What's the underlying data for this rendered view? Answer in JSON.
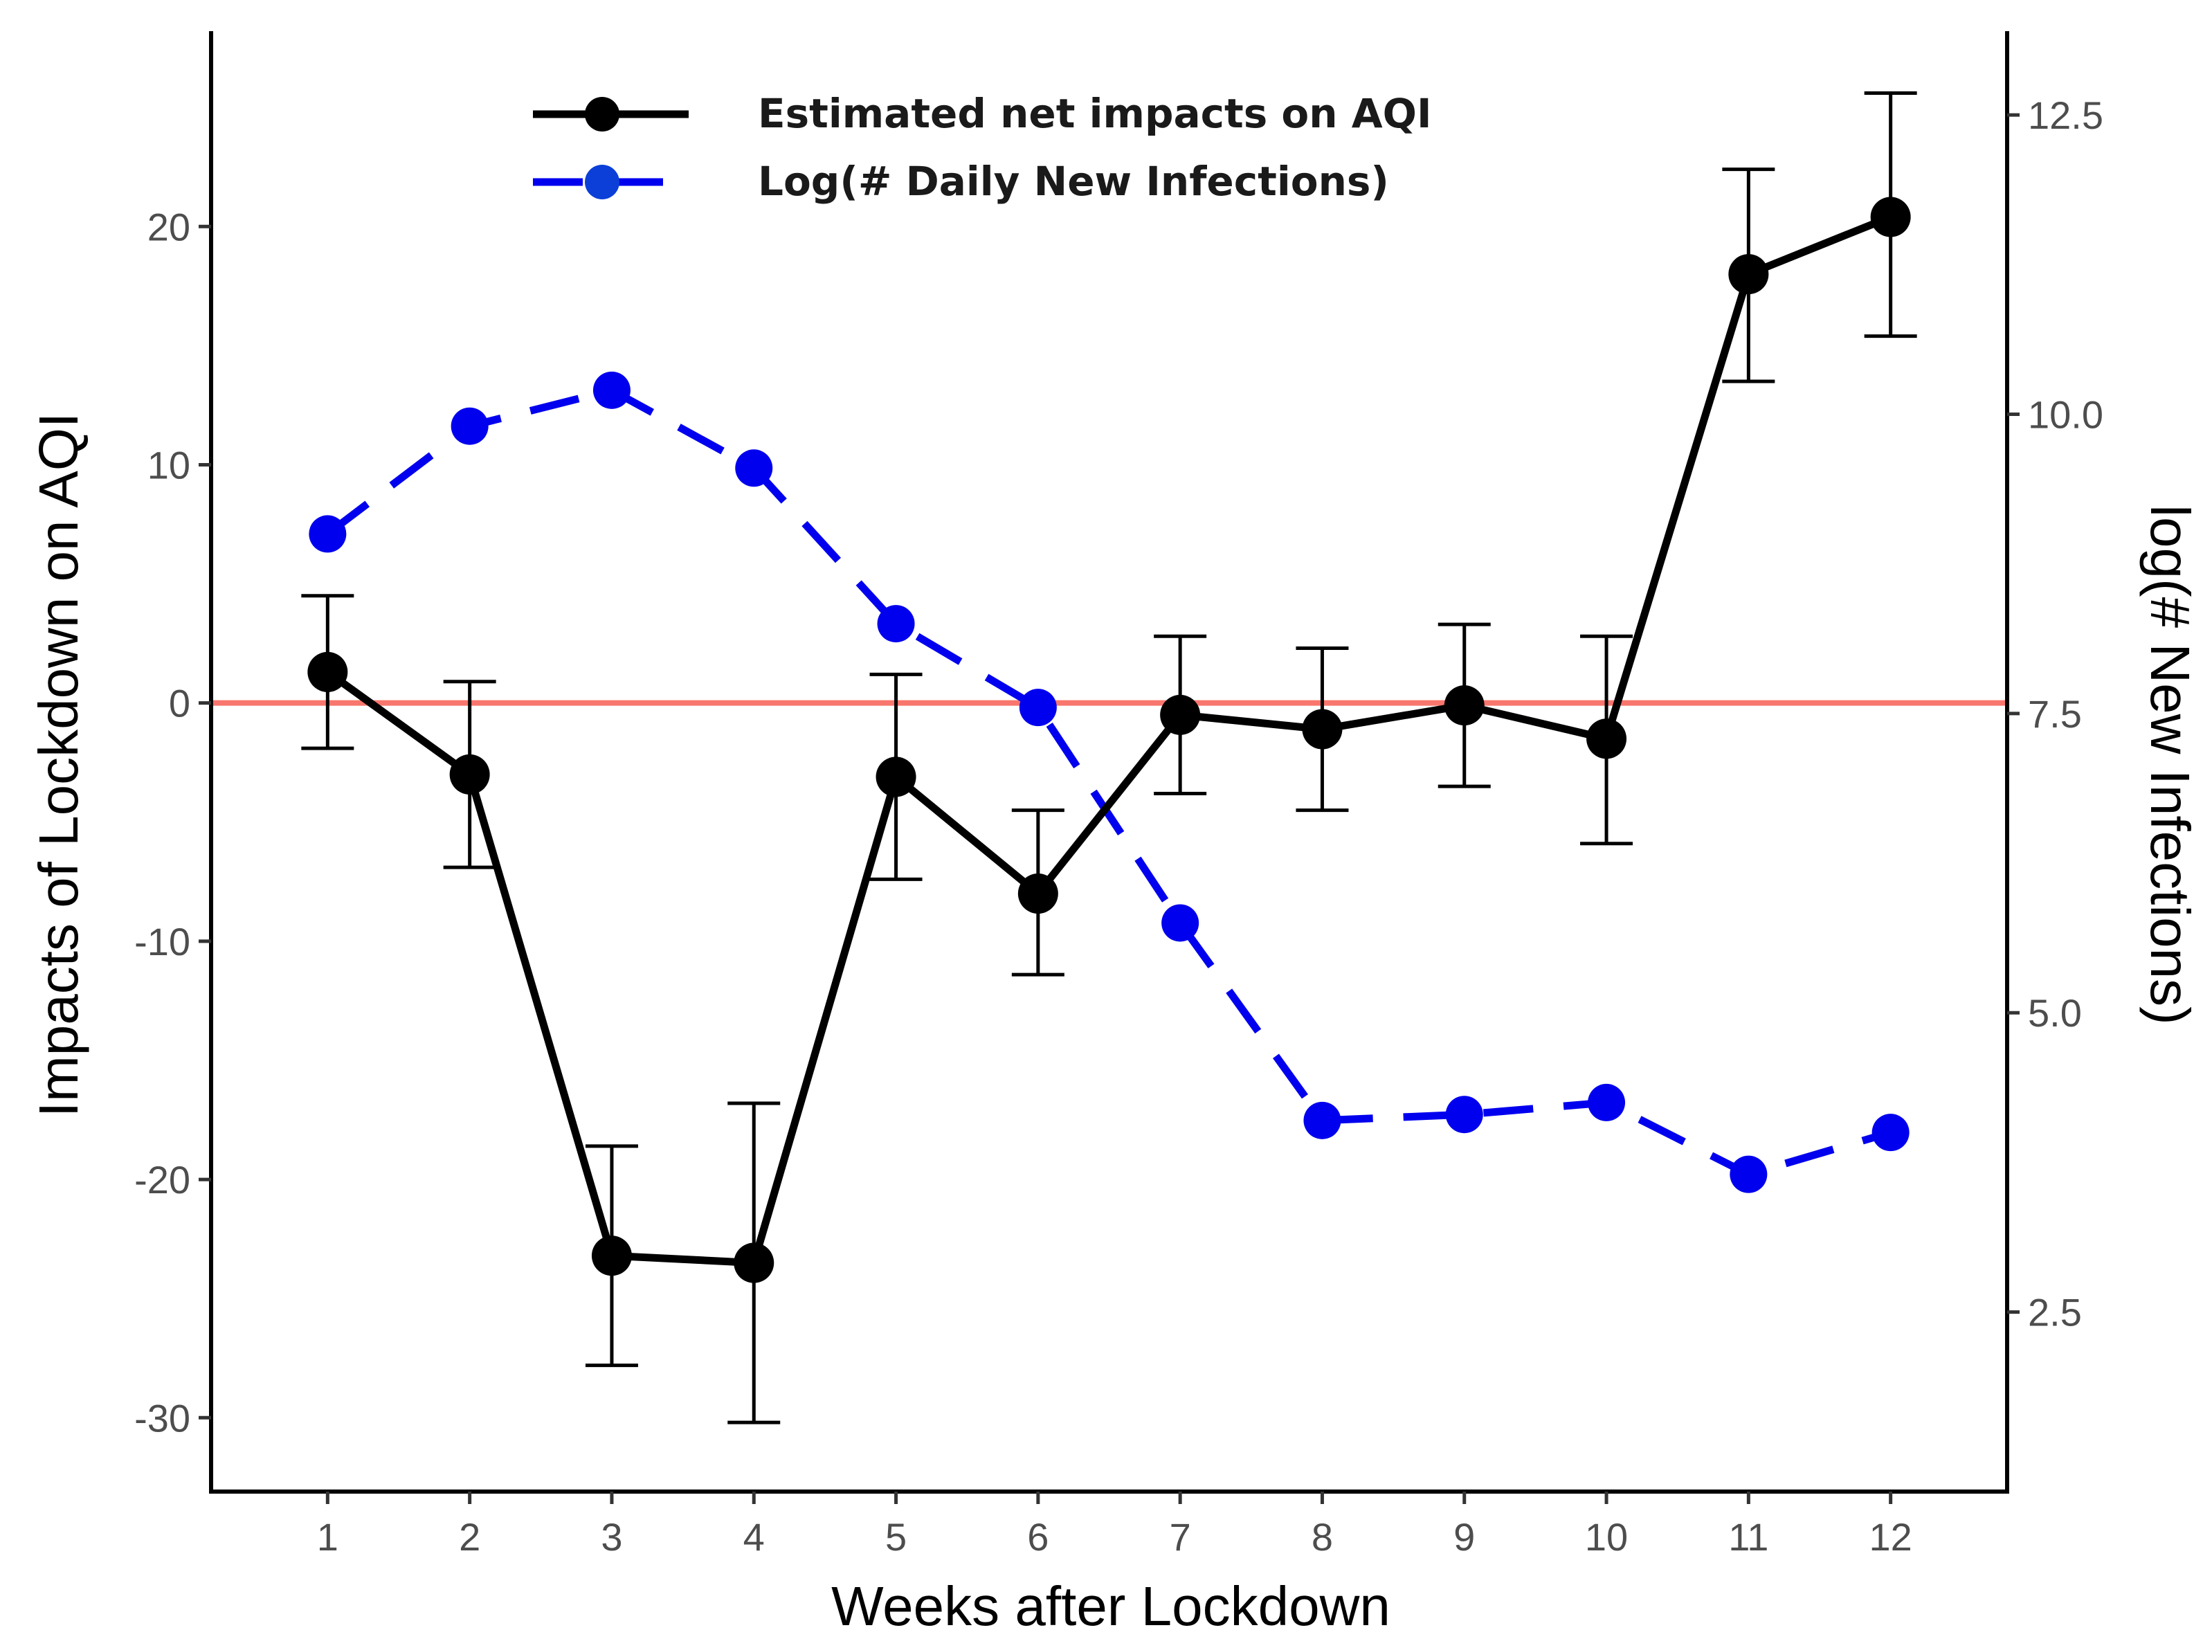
{
  "chart_data": {
    "type": "line",
    "xlabel": "Weeks after Lockdown",
    "ylabel": "Impacts of Lockdown on AQI",
    "y2label": "log(# New Infections)",
    "x": [
      1,
      2,
      3,
      4,
      5,
      6,
      7,
      8,
      9,
      10,
      11,
      12
    ],
    "xticks": [
      "1",
      "2",
      "3",
      "4",
      "5",
      "6",
      "7",
      "8",
      "9",
      "10",
      "11",
      "12"
    ],
    "xlim": [
      0.18,
      12.82
    ],
    "ylim": [
      -33.1,
      28.2
    ],
    "yticks": [
      -30,
      -20,
      -10,
      0,
      10,
      20
    ],
    "ytick_labels": [
      "-30",
      "-20",
      "-10",
      "0",
      "10",
      "20"
    ],
    "y2lim": [
      1.0,
      13.2
    ],
    "y2ticks": [
      2.5,
      5.0,
      7.5,
      10.0,
      12.5
    ],
    "y2tick_labels": [
      "2.5",
      "5.0",
      "7.5",
      "10.0",
      "12.5"
    ],
    "reference_line": {
      "y": 0,
      "color": "#f8766d"
    },
    "grid": false,
    "legend_position": "top-left",
    "series": [
      {
        "name": "Estimated net impacts on AQI",
        "axis": "left",
        "color": "#000000",
        "line_style": "solid",
        "values": [
          1.3,
          -3.0,
          -23.2,
          -23.5,
          -3.1,
          -8.0,
          -0.5,
          -1.1,
          -0.1,
          -1.5,
          18.0,
          20.4
        ],
        "err_low": [
          -1.9,
          -6.9,
          -27.8,
          -30.2,
          -7.4,
          -11.4,
          -3.8,
          -4.5,
          -3.5,
          -5.9,
          13.5,
          15.4
        ],
        "err_high": [
          4.5,
          0.9,
          -18.6,
          -16.8,
          1.2,
          -4.5,
          2.8,
          2.3,
          3.3,
          2.8,
          22.4,
          25.6
        ]
      },
      {
        "name": "Log(# Daily New Infections)",
        "axis": "right",
        "color": "#0000ee",
        "line_style": "dashed",
        "values": [
          9.0,
          9.9,
          10.2,
          9.55,
          8.25,
          7.55,
          5.75,
          4.1,
          4.15,
          4.25,
          3.65,
          4.0
        ]
      }
    ]
  }
}
